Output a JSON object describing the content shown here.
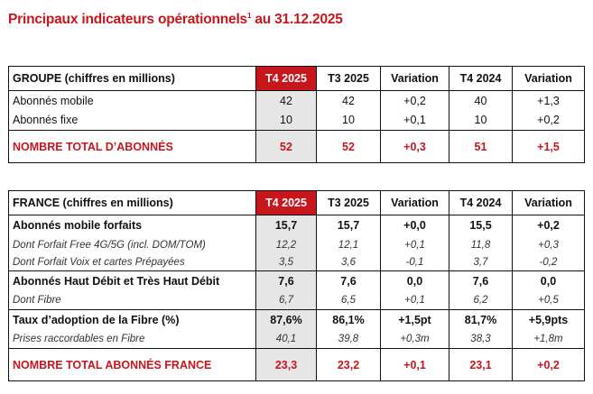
{
  "title": "Principaux indicateurs opérationnels",
  "title_sup": "1",
  "title_suffix": " au 31.12.2025",
  "columns": [
    "T4 2025",
    "T3 2025",
    "Variation",
    "T4 2024",
    "Variation"
  ],
  "accent": "#c8161d",
  "groupe": {
    "header": "GROUPE (chiffres en millions)",
    "sections": [
      [
        {
          "style": "n",
          "label": "Abonnés mobile",
          "values": [
            "42",
            "42",
            "+0,2",
            "40",
            "+1,3"
          ]
        },
        {
          "style": "n",
          "label": "Abonnés fixe",
          "values": [
            "10",
            "10",
            "+0,1",
            "10",
            "+0,2"
          ]
        }
      ],
      [
        {
          "style": "t",
          "label": "NOMBRE TOTAL D’ABONNÉS",
          "values": [
            "52",
            "52",
            "+0,3",
            "51",
            "+1,5"
          ]
        }
      ]
    ]
  },
  "france": {
    "header": "FRANCE (chiffres en millions)",
    "sections": [
      [
        {
          "style": "b",
          "label": "Abonnés mobile forfaits",
          "values": [
            "15,7",
            "15,7",
            "+0,0",
            "15,5",
            "+0,2"
          ]
        },
        {
          "style": "i",
          "label": "Dont Forfait Free 4G/5G (incl. DOM/TOM)",
          "values": [
            "12,2",
            "12,1",
            "+0,1",
            "11,8",
            "+0,3"
          ]
        },
        {
          "style": "i",
          "label": "Dont Forfait Voix et cartes Prépayées",
          "values": [
            "3,5",
            "3,6",
            "-0,1",
            "3,7",
            "-0,2"
          ]
        }
      ],
      [
        {
          "style": "b",
          "label": "Abonnés Haut Débit et Très Haut Débit",
          "values": [
            "7,6",
            "7,6",
            "0,0",
            "7,6",
            "0,0"
          ]
        },
        {
          "style": "i",
          "label": "Dont Fibre",
          "values": [
            "6,7",
            "6,5",
            "+0,1",
            "6,2",
            "+0,5"
          ]
        }
      ],
      [
        {
          "style": "b",
          "label": "Taux d’adoption de la Fibre (%)",
          "values": [
            "87,6%",
            "86,1%",
            "+1,5pt",
            "81,7%",
            "+5,9pts"
          ]
        },
        {
          "style": "i",
          "label": "Prises raccordables en Fibre",
          "values": [
            "40,1",
            "39,8",
            "+0,3m",
            "38,3",
            "+1,8m"
          ]
        }
      ],
      [
        {
          "style": "t",
          "label": "NOMBRE TOTAL ABONNÉS FRANCE",
          "values": [
            "23,3",
            "23,2",
            "+0,1",
            "23,1",
            "+0,2"
          ]
        }
      ]
    ]
  }
}
